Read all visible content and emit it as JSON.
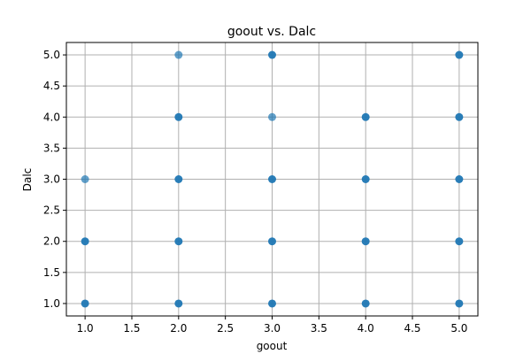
{
  "chart_data": {
    "type": "scatter",
    "title": "goout vs. Dalc",
    "xlabel": "goout",
    "ylabel": "Dalc",
    "xlim": [
      0.8,
      5.2
    ],
    "ylim": [
      0.8,
      5.2
    ],
    "xticks": [
      "1.0",
      "1.5",
      "2.0",
      "2.5",
      "3.0",
      "3.5",
      "4.0",
      "4.5",
      "5.0"
    ],
    "yticks": [
      "1.0",
      "1.5",
      "2.0",
      "2.5",
      "3.0",
      "3.5",
      "4.0",
      "4.5",
      "5.0"
    ],
    "grid": true,
    "point_color": "#1f77b4",
    "points": [
      {
        "x": 1,
        "y": 1,
        "shade": "dark"
      },
      {
        "x": 1,
        "y": 2,
        "shade": "dark"
      },
      {
        "x": 1,
        "y": 3,
        "shade": "light"
      },
      {
        "x": 2,
        "y": 1,
        "shade": "dark"
      },
      {
        "x": 2,
        "y": 2,
        "shade": "dark"
      },
      {
        "x": 2,
        "y": 3,
        "shade": "dark"
      },
      {
        "x": 2,
        "y": 4,
        "shade": "dark"
      },
      {
        "x": 2,
        "y": 5,
        "shade": "light"
      },
      {
        "x": 3,
        "y": 1,
        "shade": "dark"
      },
      {
        "x": 3,
        "y": 2,
        "shade": "dark"
      },
      {
        "x": 3,
        "y": 3,
        "shade": "dark"
      },
      {
        "x": 3,
        "y": 4,
        "shade": "light"
      },
      {
        "x": 3,
        "y": 5,
        "shade": "dark"
      },
      {
        "x": 4,
        "y": 1,
        "shade": "dark"
      },
      {
        "x": 4,
        "y": 2,
        "shade": "dark"
      },
      {
        "x": 4,
        "y": 3,
        "shade": "dark"
      },
      {
        "x": 4,
        "y": 4,
        "shade": "dark"
      },
      {
        "x": 5,
        "y": 1,
        "shade": "dark"
      },
      {
        "x": 5,
        "y": 2,
        "shade": "dark"
      },
      {
        "x": 5,
        "y": 3,
        "shade": "dark"
      },
      {
        "x": 5,
        "y": 4,
        "shade": "dark"
      },
      {
        "x": 5,
        "y": 5,
        "shade": "dark"
      }
    ]
  }
}
